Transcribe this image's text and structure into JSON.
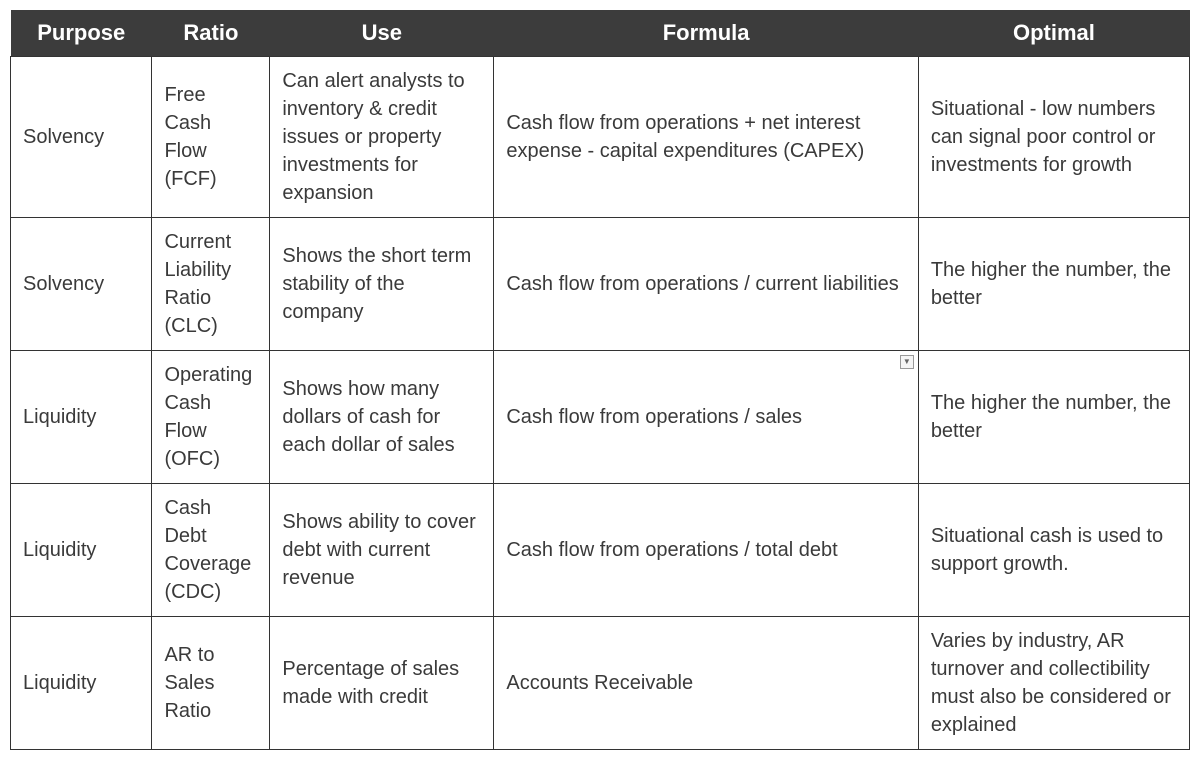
{
  "table": {
    "header_bg_color": "#3c3c3c",
    "header_text_color": "#ffffff",
    "body_text_color": "#3a3a3a",
    "border_color": "#333333",
    "header_fontsize": 22,
    "body_fontsize": 20,
    "columns": [
      {
        "label": "Purpose",
        "width_pct": 12,
        "align": "center"
      },
      {
        "label": "Ratio",
        "width_pct": 10,
        "align": "center"
      },
      {
        "label": "Use",
        "width_pct": 19,
        "align": "center"
      },
      {
        "label": "Formula",
        "width_pct": 36,
        "align": "center"
      },
      {
        "label": "Optimal",
        "width_pct": 23,
        "align": "center"
      }
    ],
    "rows": [
      {
        "purpose": "Solvency",
        "ratio": "Free Cash Flow (FCF)",
        "use": "Can alert analysts to inventory & credit issues or property investments for expansion",
        "formula": "Cash flow from operations + net interest expense - capital expenditures (CAPEX)",
        "optimal": "Situational - low numbers can signal poor control or investments for growth",
        "dropdown_visible": false
      },
      {
        "purpose": "Solvency",
        "ratio": "Current Liability Ratio (CLC)",
        "use": "Shows the short term stability of the company",
        "formula": "Cash flow from operations / current liabilities",
        "optimal": "The higher the number, the better",
        "dropdown_visible": false
      },
      {
        "purpose": "Liquidity",
        "ratio": "Operating Cash Flow (OFC)",
        "use": "Shows how many dollars of cash for each dollar of sales",
        "formula": "Cash flow from operations / sales",
        "optimal": "The higher the number, the better",
        "dropdown_visible": true
      },
      {
        "purpose": "Liquidity",
        "ratio": "Cash Debt Coverage (CDC)",
        "use": "Shows ability to cover debt with current revenue",
        "formula": "Cash flow from operations / total debt",
        "optimal": "Situational cash is used to support growth.",
        "dropdown_visible": false
      },
      {
        "purpose": "Liquidity",
        "ratio": "AR to Sales Ratio",
        "use": "Percentage of sales made with credit",
        "formula": "Accounts Receivable",
        "optimal": "Varies by industry, AR turnover and collectibility must also be considered or explained",
        "dropdown_visible": false
      }
    ]
  }
}
